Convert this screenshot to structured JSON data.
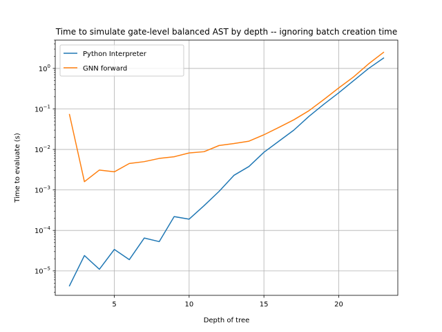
{
  "chart_data": {
    "type": "line",
    "title": "Time to simulate gate-level balanced AST by depth -- ignoring batch creation time",
    "xlabel": "Depth of tree",
    "ylabel": "Time to evaluate (s)",
    "xscale": "linear",
    "yscale": "log",
    "xlim": [
      1.05,
      23.95
    ],
    "ylim": [
      2.5e-06,
      5
    ],
    "xticks": [
      5,
      10,
      15,
      20
    ],
    "yticks": [
      {
        "value": 1e-05,
        "base": "10",
        "exp": "−5"
      },
      {
        "value": 0.0001,
        "base": "10",
        "exp": "−4"
      },
      {
        "value": 0.001,
        "base": "10",
        "exp": "−3"
      },
      {
        "value": 0.01,
        "base": "10",
        "exp": "−2"
      },
      {
        "value": 0.1,
        "base": "10",
        "exp": "−1"
      },
      {
        "value": 1,
        "base": "10",
        "exp": "0"
      }
    ],
    "grid": true,
    "legend_position": "top-left",
    "x": [
      2,
      3,
      4,
      5,
      6,
      7,
      8,
      9,
      10,
      11,
      12,
      13,
      14,
      15,
      16,
      17,
      18,
      19,
      20,
      21,
      22,
      23
    ],
    "series": [
      {
        "name": "Python Interpreter",
        "color": "#1f77b4",
        "values": [
          4.3e-06,
          2.4e-05,
          1.1e-05,
          3.4e-05,
          1.9e-05,
          6.5e-05,
          5.3e-05,
          0.00022,
          0.00019,
          0.00041,
          0.00092,
          0.0023,
          0.0038,
          0.0085,
          0.016,
          0.03,
          0.065,
          0.13,
          0.25,
          0.5,
          1.0,
          1.8
        ]
      },
      {
        "name": "GNN forward",
        "color": "#ff7f0e",
        "values": [
          0.073,
          0.0016,
          0.0031,
          0.0028,
          0.0045,
          0.005,
          0.006,
          0.0066,
          0.0082,
          0.0088,
          0.0125,
          0.014,
          0.016,
          0.023,
          0.035,
          0.054,
          0.09,
          0.17,
          0.33,
          0.62,
          1.3,
          2.5
        ]
      }
    ]
  }
}
